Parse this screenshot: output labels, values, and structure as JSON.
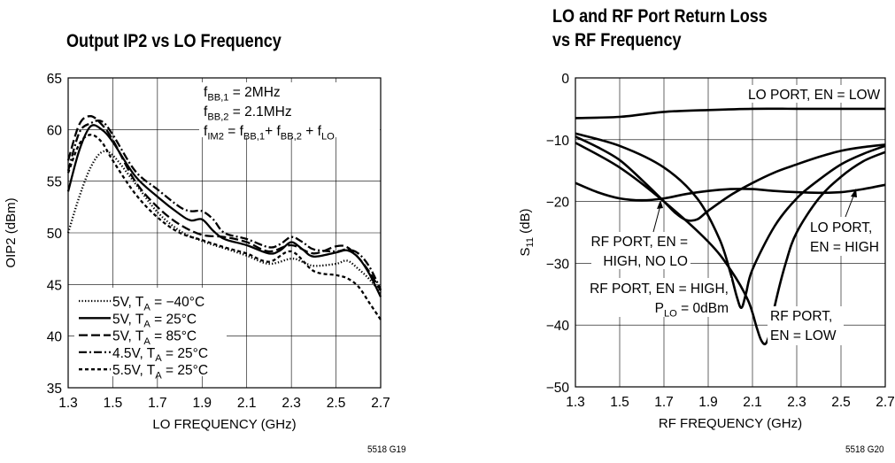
{
  "figure_ids": {
    "left": "5518 G19",
    "right": "5518 G20"
  },
  "chart_data": [
    {
      "type": "line",
      "title": "Output IP2 vs LO Frequency",
      "xlabel": "LO FREQUENCY (GHz)",
      "ylabel": "OIP2 (dBm)",
      "xlim": [
        1.3,
        2.7
      ],
      "ylim": [
        35,
        65
      ],
      "xticks": [
        1.3,
        1.5,
        1.7,
        1.9,
        2.1,
        2.3,
        2.5,
        2.7
      ],
      "xtick_labels": [
        "1.3",
        "1.5",
        "1.7",
        "1.9",
        "2.1",
        "2.3",
        "2.5",
        "2.7"
      ],
      "yticks": [
        35,
        40,
        45,
        50,
        55,
        60,
        65
      ],
      "ytick_labels": [
        "35",
        "40",
        "45",
        "50",
        "55",
        "60",
        "65"
      ],
      "grid": true,
      "legend_position": "bottom-left",
      "annotations": [
        {
          "main": "f",
          "sub": "BB,1",
          "rest": " = 2MHz"
        },
        {
          "main": "f",
          "sub": "BB,2",
          "rest": " = 2.1MHz"
        },
        {
          "main": "f",
          "sub": "IM2",
          "rest": " = f",
          "sub2": "BB,1",
          "rest2": "+ f",
          "sub3": "BB,2",
          "rest3": " + f",
          "sub4": "LO"
        }
      ],
      "series": [
        {
          "name": "5V, TA = −40°C",
          "legend_pre": "5V, T",
          "legend_sub": "A",
          "legend_post": " = −40°C",
          "dash": "dotted",
          "x": [
            1.3,
            1.35,
            1.4,
            1.45,
            1.5,
            1.6,
            1.7,
            1.8,
            1.9,
            2.0,
            2.1,
            2.2,
            2.3,
            2.35,
            2.4,
            2.5,
            2.55,
            2.6,
            2.65,
            2.7
          ],
          "y": [
            50,
            53.5,
            56.3,
            57.8,
            57.5,
            54.8,
            52,
            50.2,
            49.2,
            48.5,
            47.8,
            47.0,
            47.5,
            47.2,
            46.8,
            47.0,
            47.3,
            46.5,
            45.5,
            44.2
          ]
        },
        {
          "name": "5V, TA = 25°C",
          "legend_pre": "5V, T",
          "legend_sub": "A",
          "legend_post": " = 25°C",
          "dash": "solid",
          "x": [
            1.3,
            1.35,
            1.4,
            1.45,
            1.5,
            1.6,
            1.7,
            1.8,
            1.85,
            1.9,
            1.95,
            2.0,
            2.1,
            2.2,
            2.25,
            2.3,
            2.35,
            2.4,
            2.5,
            2.55,
            2.6,
            2.65,
            2.7
          ],
          "y": [
            54,
            58,
            60.3,
            60,
            58.8,
            55.5,
            53.5,
            51.8,
            51.2,
            51.3,
            50.2,
            49.4,
            48.8,
            48.0,
            48.3,
            49.1,
            48.4,
            47.7,
            48.1,
            48.3,
            47.6,
            46.0,
            43.8
          ]
        },
        {
          "name": "5V, TA = 85°C",
          "legend_pre": "5V, T",
          "legend_sub": "A",
          "legend_post": " = 85°C",
          "dash": "long-dash",
          "x": [
            1.3,
            1.35,
            1.4,
            1.45,
            1.5,
            1.6,
            1.7,
            1.8,
            1.9,
            2.0,
            2.1,
            2.2,
            2.3,
            2.4,
            2.5,
            2.55,
            2.6,
            2.65,
            2.7
          ],
          "y": [
            57,
            60.5,
            61.3,
            60.5,
            59.0,
            55.0,
            52.5,
            50.8,
            49.8,
            49.6,
            49.1,
            48.2,
            48.8,
            48.0,
            48.7,
            48.6,
            47.6,
            46.2,
            44.4
          ]
        },
        {
          "name": "4.5V, TA = 25°C",
          "legend_pre": "4.5V, T",
          "legend_sub": "A",
          "legend_post": " = 25°C",
          "dash": "dash-dot",
          "x": [
            1.3,
            1.35,
            1.4,
            1.45,
            1.5,
            1.6,
            1.7,
            1.8,
            1.85,
            1.9,
            1.95,
            2.0,
            2.1,
            2.2,
            2.25,
            2.3,
            2.35,
            2.4,
            2.5,
            2.55,
            2.6,
            2.65,
            2.7
          ],
          "y": [
            56,
            59.7,
            60.6,
            60.8,
            59.5,
            56.0,
            54.2,
            52.5,
            52.1,
            52.1,
            51.3,
            50.0,
            49.4,
            48.6,
            48.9,
            49.6,
            49.1,
            48.4,
            48.2,
            48.4,
            48.0,
            46.7,
            44.5
          ]
        },
        {
          "name": "5.5V, TA = 25°C",
          "legend_pre": "5.5V, T",
          "legend_sub": "A",
          "legend_post": " = 25°C",
          "dash": "short-dash",
          "x": [
            1.3,
            1.35,
            1.4,
            1.45,
            1.5,
            1.6,
            1.7,
            1.8,
            1.9,
            2.0,
            2.1,
            2.2,
            2.3,
            2.4,
            2.5,
            2.55,
            2.6,
            2.65,
            2.7
          ],
          "y": [
            55.8,
            58.6,
            59.5,
            58.8,
            57.0,
            53.8,
            51.5,
            50.0,
            49.3,
            48.6,
            48.0,
            47.2,
            48.2,
            46.3,
            45.9,
            45.6,
            44.8,
            43.2,
            41.6
          ]
        }
      ]
    },
    {
      "type": "line",
      "title": "LO and RF Port Return Loss vs RF Frequency",
      "title_lines": [
        "LO and RF Port Return Loss",
        "vs RF Frequency"
      ],
      "xlabel": "RF FREQUENCY (GHz)",
      "ylabel": "S11 (dB)",
      "ylabel_main": "S",
      "ylabel_sub": "11",
      "ylabel_rest": " (dB)",
      "xlim": [
        1.3,
        2.7
      ],
      "ylim": [
        -50,
        0
      ],
      "xticks": [
        1.3,
        1.5,
        1.7,
        1.9,
        2.1,
        2.3,
        2.5,
        2.7
      ],
      "xtick_labels": [
        "1.3",
        "1.5",
        "1.7",
        "1.9",
        "2.1",
        "2.3",
        "2.5",
        "2.7"
      ],
      "yticks": [
        -50,
        -40,
        -30,
        -20,
        -10,
        0
      ],
      "ytick_labels": [
        "−50",
        "−40",
        "−30",
        "−20",
        "−10",
        "0"
      ],
      "grid": true,
      "series": [
        {
          "name": "LO PORT, EN = LOW",
          "x": [
            1.3,
            1.5,
            1.7,
            1.9,
            2.1,
            2.3,
            2.5,
            2.7
          ],
          "y": [
            -6.5,
            -6.3,
            -5.5,
            -5.2,
            -5.0,
            -5.0,
            -5.0,
            -5.0
          ]
        },
        {
          "name": "RF PORT, EN = HIGH, NO LO",
          "x": [
            1.3,
            1.4,
            1.5,
            1.6,
            1.7,
            1.75,
            1.8,
            1.85,
            1.9,
            2.0,
            2.1,
            2.2,
            2.3,
            2.4,
            2.5,
            2.6,
            2.7
          ],
          "y": [
            -9.5,
            -11.2,
            -13.3,
            -16.5,
            -20.0,
            -21.8,
            -23.0,
            -22.9,
            -21.5,
            -19.0,
            -17.0,
            -15.3,
            -14.0,
            -12.8,
            -11.8,
            -11.2,
            -10.8
          ]
        },
        {
          "name": "RF PORT, EN = HIGH, PLO = 0dBm",
          "x": [
            1.3,
            1.5,
            1.7,
            1.85,
            1.95,
            2.0,
            2.03,
            2.05,
            2.07,
            2.1,
            2.2,
            2.3,
            2.4,
            2.5,
            2.6,
            2.7
          ],
          "y": [
            -9.0,
            -11.0,
            -14.5,
            -19.5,
            -26.0,
            -31.5,
            -35.5,
            -37.2,
            -35.0,
            -31.0,
            -24.0,
            -19.5,
            -16.5,
            -14.0,
            -12.3,
            -11.0
          ]
        },
        {
          "name": "RF PORT, EN = LOW",
          "x": [
            1.3,
            1.5,
            1.7,
            1.9,
            2.0,
            2.08,
            2.12,
            2.14,
            2.16,
            2.18,
            2.2,
            2.25,
            2.3,
            2.4,
            2.5,
            2.6,
            2.7
          ],
          "y": [
            -10.5,
            -14.5,
            -20.0,
            -26.5,
            -31.0,
            -36.0,
            -40.5,
            -42.5,
            -43.0,
            -41.0,
            -37.0,
            -30.0,
            -25.0,
            -19.5,
            -16.0,
            -13.5,
            -12.0
          ]
        },
        {
          "name": "LO PORT, EN = HIGH",
          "x": [
            1.3,
            1.4,
            1.5,
            1.6,
            1.7,
            1.8,
            1.9,
            2.0,
            2.1,
            2.2,
            2.3,
            2.4,
            2.5,
            2.6,
            2.7
          ],
          "y": [
            -17.0,
            -18.5,
            -19.5,
            -19.8,
            -19.5,
            -18.8,
            -18.3,
            -18.0,
            -18.0,
            -18.3,
            -18.5,
            -18.6,
            -18.5,
            -18.0,
            -17.3
          ]
        }
      ],
      "annotations": [
        {
          "lines": [
            "LO PORT, EN = LOW"
          ]
        },
        {
          "lines": [
            "RF PORT, EN =",
            "HIGH, NO LO"
          ]
        },
        {
          "lines": [
            "RF PORT, EN = HIGH,"
          ],
          "line2_pre": "P",
          "line2_sub": "LO",
          "line2_post": " = 0dBm"
        },
        {
          "lines": [
            "RF PORT,",
            "EN = LOW"
          ]
        },
        {
          "lines": [
            "LO PORT,",
            "EN = HIGH"
          ]
        }
      ]
    }
  ]
}
